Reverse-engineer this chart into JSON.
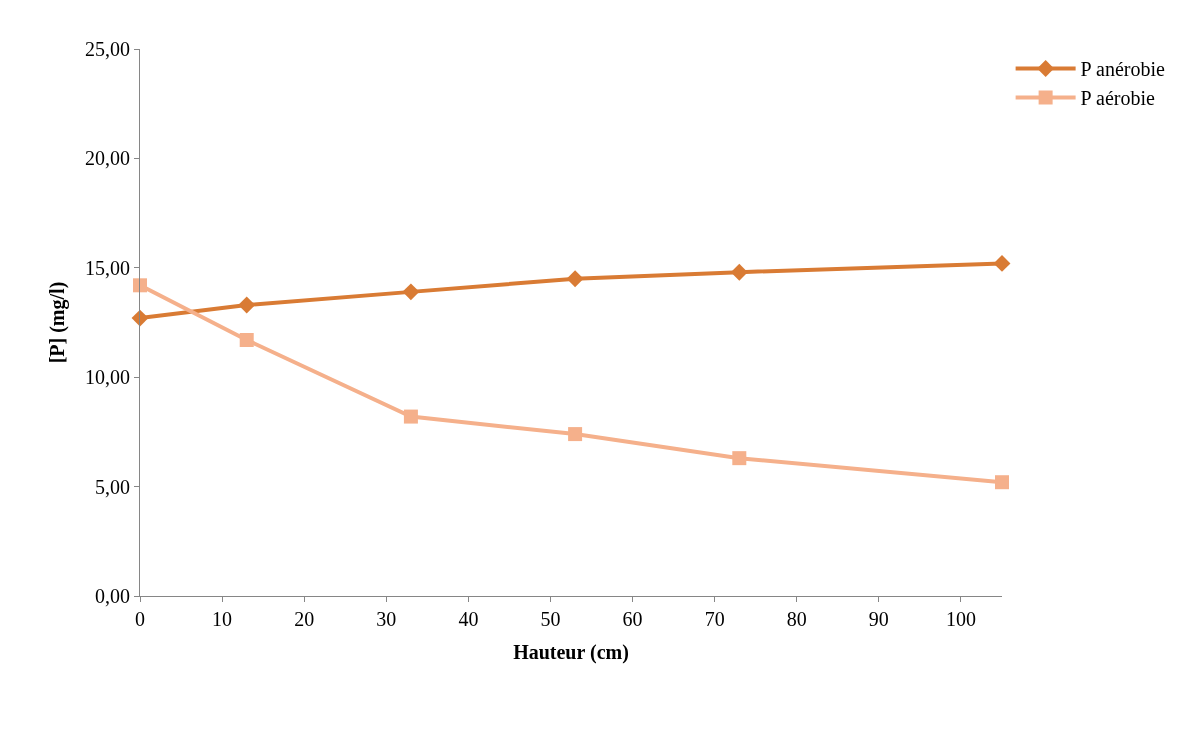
{
  "chart_data": {
    "type": "line",
    "xlabel": "Hauteur (cm)",
    "ylabel": "[P] (mg/l)",
    "x": [
      0,
      13,
      33,
      53,
      73,
      105
    ],
    "series": [
      {
        "name": "P anérobie",
        "color": "#d97b34",
        "marker": "diamond",
        "values": [
          12.7,
          13.3,
          13.9,
          14.5,
          14.8,
          15.2
        ]
      },
      {
        "name": "P aérobie",
        "color": "#f5b08b",
        "marker": "square",
        "values": [
          14.2,
          11.7,
          8.2,
          7.4,
          6.3,
          5.2
        ]
      }
    ],
    "xlim": [
      0,
      105
    ],
    "xticks": [
      0,
      10,
      20,
      30,
      40,
      50,
      60,
      70,
      80,
      90,
      100
    ],
    "ylim": [
      0,
      25
    ],
    "yticks": [
      {
        "value": 0,
        "label": "0,00"
      },
      {
        "value": 5,
        "label": "5,00"
      },
      {
        "value": 10,
        "label": "10,00"
      },
      {
        "value": 15,
        "label": "15,00"
      },
      {
        "value": 20,
        "label": "20,00"
      },
      {
        "value": 25,
        "label": "25,00"
      }
    ],
    "legend": "top right",
    "line_style": "solid"
  }
}
